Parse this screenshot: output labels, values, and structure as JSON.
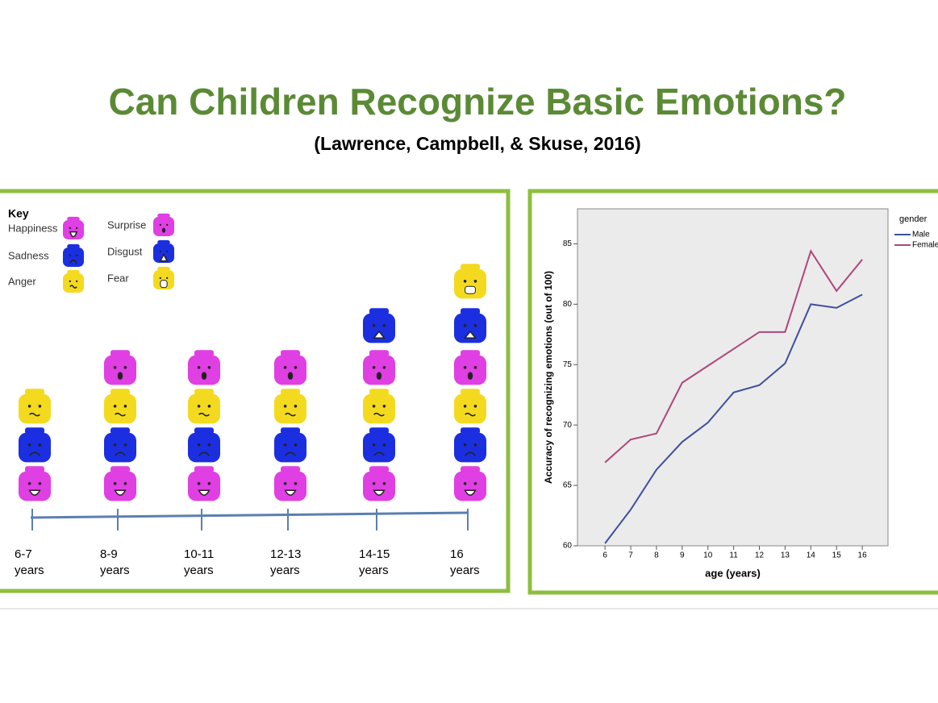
{
  "title": "Can Children Recognize Basic Emotions?",
  "subtitle": "(Lawrence, Campbell, & Skuse, 2016)",
  "key": {
    "title": "Key",
    "items": [
      {
        "label": "Happiness",
        "color": "#e03fe3"
      },
      {
        "label": "Sadness",
        "color": "#1b2fe0"
      },
      {
        "label": "Anger",
        "color": "#f4da1f"
      },
      {
        "label": "Surprise",
        "color": "#e03fe3"
      },
      {
        "label": "Disgust",
        "color": "#1b2fe0"
      },
      {
        "label": "Fear",
        "color": "#f4da1f"
      }
    ]
  },
  "timeline": {
    "groups": [
      {
        "age": "6-7",
        "unit": "years"
      },
      {
        "age": "8-9",
        "unit": "years"
      },
      {
        "age": "10-11",
        "unit": "years"
      },
      {
        "age": "12-13",
        "unit": "years"
      },
      {
        "age": "14-15",
        "unit": "years"
      },
      {
        "age": "16",
        "unit": "years"
      }
    ]
  },
  "chart_data": {
    "type": "line",
    "x": [
      6,
      7,
      8,
      9,
      10,
      11,
      12,
      13,
      14,
      15,
      16
    ],
    "series": [
      {
        "name": "Male",
        "color": "#3d4f9f",
        "values": [
          60.2,
          63.0,
          66.3,
          68.6,
          70.2,
          72.7,
          73.3,
          75.1,
          80.0,
          79.7,
          80.8
        ]
      },
      {
        "name": "Female",
        "color": "#b0457c",
        "values": [
          66.9,
          68.8,
          69.3,
          73.5,
          74.9,
          76.3,
          77.7,
          77.7,
          84.4,
          81.1,
          83.7
        ]
      }
    ],
    "xlim": [
      4.93,
      17
    ],
    "ylim": [
      60,
      87.9
    ],
    "xticks": [
      6,
      7,
      8,
      9,
      10,
      11,
      12,
      13,
      14,
      15,
      16
    ],
    "yticks": [
      60,
      65,
      70,
      75,
      80,
      85
    ],
    "xlabel": "age (years)",
    "ylabel": "Accuracy of recognizing emotions (out of 100)",
    "legend_title": "gender",
    "legend": "right"
  }
}
